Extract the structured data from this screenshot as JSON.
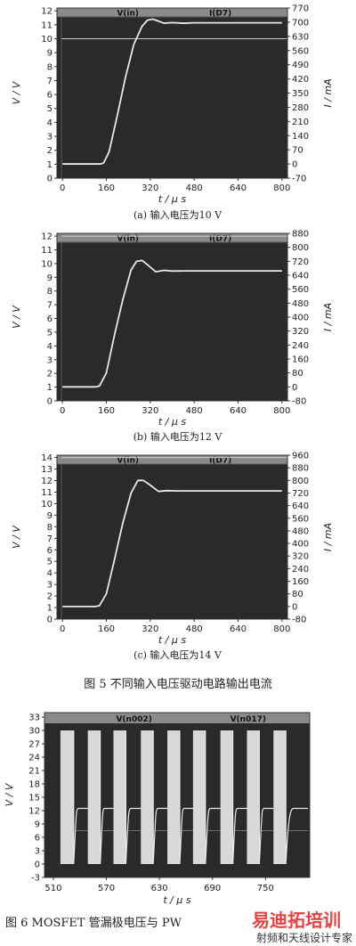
{
  "figure5": {
    "caption": "图 5   不同输入电压驱动电路输出电流"
  },
  "figure6": {
    "caption": "图 6   MOSFET 管漏极电压与 PW"
  },
  "watermark": {
    "line1": "易迪拓培训",
    "line2": "射频和天线设计专家"
  },
  "colors": {
    "plot_bg": "#2a2a2a",
    "header_bg": "#8a8a8a",
    "trace": "#e8e8e8"
  },
  "chart_data": [
    {
      "type": "line",
      "subcaption": "(a)  输入电压为10 V",
      "legend": [
        "V(in)",
        "I(D7)"
      ],
      "xlabel": "t / μ s",
      "ylabel_left": "V / V",
      "ylabel_right": "I / mA",
      "x_ticks": [
        0,
        160,
        320,
        480,
        640,
        800
      ],
      "y_left_ticks": [
        0,
        1,
        2,
        3,
        4,
        5,
        6,
        7,
        8,
        9,
        10,
        11,
        12
      ],
      "y_right_ticks": [
        -70,
        0,
        70,
        140,
        210,
        280,
        350,
        420,
        490,
        560,
        630,
        700,
        770
      ],
      "xlim": [
        -20,
        820
      ],
      "ylim_left": [
        0,
        12.2
      ],
      "ylim_right": [
        -70,
        770
      ],
      "hline": {
        "axis": "left",
        "value": 10
      },
      "series": [
        {
          "name": "I(D7)",
          "axis": "right",
          "x": [
            0,
            140,
            150,
            170,
            200,
            230,
            260,
            290,
            310,
            330,
            350,
            370,
            400,
            440,
            480,
            800
          ],
          "y": [
            0,
            0,
            5,
            60,
            240,
            430,
            590,
            680,
            710,
            715,
            705,
            695,
            698,
            695,
            697,
            697
          ]
        }
      ]
    },
    {
      "type": "line",
      "subcaption": "(b)  输入电压为12 V",
      "legend": [
        "V(in)",
        "I(D7)"
      ],
      "xlabel": "t / μ s",
      "ylabel_left": "V / V",
      "ylabel_right": "I / mA",
      "x_ticks": [
        0,
        160,
        320,
        480,
        640,
        800
      ],
      "y_left_ticks": [
        0,
        1,
        2,
        3,
        4,
        5,
        6,
        7,
        8,
        9,
        10,
        11,
        12
      ],
      "y_right_ticks": [
        -80,
        0,
        80,
        160,
        240,
        320,
        400,
        480,
        560,
        640,
        720,
        800,
        880
      ],
      "xlim": [
        -20,
        820
      ],
      "ylim_left": [
        0,
        12.2
      ],
      "ylim_right": [
        -80,
        880
      ],
      "hline": {
        "axis": "left",
        "value": 12
      },
      "series": [
        {
          "name": "I(D7)",
          "axis": "right",
          "x": [
            0,
            120,
            135,
            160,
            190,
            220,
            250,
            270,
            290,
            310,
            340,
            370,
            400,
            450,
            800
          ],
          "y": [
            0,
            0,
            5,
            80,
            300,
            500,
            670,
            720,
            725,
            700,
            660,
            668,
            664,
            665,
            665
          ]
        }
      ]
    },
    {
      "type": "line",
      "subcaption": "(c)  输入电压为14 V",
      "legend": [
        "V(in)",
        "I(D7)"
      ],
      "xlabel": "t / μ s",
      "ylabel_left": "V / V",
      "ylabel_right": "I / mA",
      "x_ticks": [
        0,
        160,
        320,
        480,
        640,
        800
      ],
      "y_left_ticks": [
        0,
        1,
        2,
        3,
        4,
        5,
        6,
        7,
        8,
        9,
        10,
        11,
        12,
        13,
        14
      ],
      "y_right_ticks": [
        -80,
        0,
        80,
        160,
        240,
        320,
        400,
        480,
        560,
        640,
        720,
        800,
        880,
        960
      ],
      "xlim": [
        -20,
        820
      ],
      "ylim_left": [
        0,
        14.2
      ],
      "ylim_right": [
        -80,
        960
      ],
      "hline": {
        "axis": "left",
        "value": 14
      },
      "series": [
        {
          "name": "I(D7)",
          "axis": "right",
          "x": [
            0,
            120,
            135,
            160,
            190,
            220,
            250,
            275,
            295,
            320,
            350,
            380,
            420,
            800
          ],
          "y": [
            0,
            0,
            5,
            80,
            300,
            530,
            720,
            800,
            800,
            770,
            730,
            735,
            733,
            733
          ]
        }
      ]
    },
    {
      "type": "line",
      "legend": [
        "V(n002)",
        "V(n017)"
      ],
      "xlabel": "t / μ s",
      "ylabel_left": "V / V",
      "x_ticks": [
        510,
        570,
        630,
        690,
        750
      ],
      "y_left_ticks": [
        -3,
        0,
        3,
        6,
        9,
        12,
        15,
        18,
        21,
        24,
        27,
        30,
        33
      ],
      "xlim": [
        500,
        800
      ],
      "ylim_left": [
        -3,
        34
      ],
      "series": [
        {
          "name": "V(n002)",
          "high": 30,
          "low_settle": 12.5,
          "low_min": 0
        },
        {
          "name": "V(n017)",
          "high": 30,
          "low": 0,
          "pulse_x": [
            [
              518,
              533
            ],
            [
              549,
              563
            ],
            [
              578,
              592
            ],
            [
              609,
              623
            ],
            [
              639,
              653
            ],
            [
              668,
              682
            ],
            [
              699,
              713
            ],
            [
              729,
              743
            ],
            [
              759,
              773
            ]
          ]
        }
      ]
    }
  ]
}
